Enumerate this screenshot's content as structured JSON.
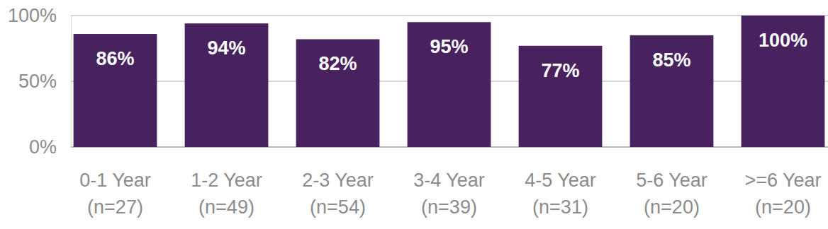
{
  "chart_data": {
    "type": "bar",
    "categories": [
      "0-1 Year\n(n=27)",
      "1-2 Year\n(n=49)",
      "2-3 Year\n(n=54)",
      "3-4 Year\n(n=39)",
      "4-5 Year\n(n=31)",
      "5-6 Year\n(n=20)",
      ">=6 Year\n(n=20)"
    ],
    "values": [
      86,
      94,
      82,
      95,
      77,
      85,
      100
    ],
    "value_labels": [
      "86%",
      "94%",
      "82%",
      "95%",
      "77%",
      "85%",
      "100%"
    ],
    "color": "#47225f",
    "ylim": [
      0,
      100
    ],
    "yticks": [
      {
        "value": 0,
        "label": "0%"
      },
      {
        "value": 50,
        "label": "50%"
      },
      {
        "value": 100,
        "label": "100%"
      }
    ],
    "grid": true,
    "data_labels": true
  }
}
